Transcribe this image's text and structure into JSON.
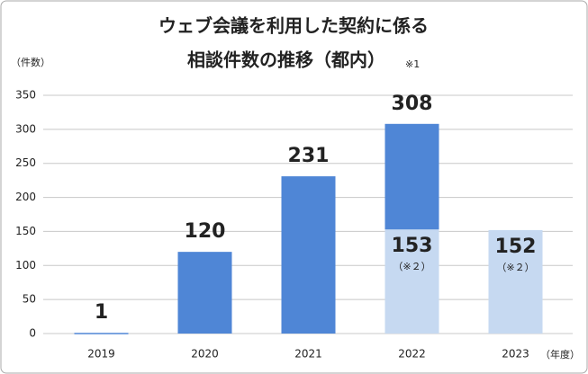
{
  "chart_data": {
    "type": "bar",
    "title": [
      "ウェブ会議を利用した契約に係る",
      "相談件数の推移（都内）"
    ],
    "title_note": "※1",
    "y_label": "（件数）",
    "x_label": "（年度）",
    "categories": [
      "2019",
      "2020",
      "2021",
      "2022",
      "2023"
    ],
    "series": [
      {
        "color": "#4f86d6",
        "values": [
          1,
          120,
          231,
          308,
          null
        ]
      },
      {
        "color": "#c6d9f1",
        "values": [
          null,
          null,
          null,
          153,
          152
        ],
        "value_notes": [
          null,
          null,
          null,
          "（※２）",
          "（※２）"
        ]
      }
    ],
    "ylim": [
      0,
      350
    ],
    "yticks": [
      0,
      50,
      100,
      150,
      200,
      250,
      300,
      350
    ],
    "grid": true
  }
}
